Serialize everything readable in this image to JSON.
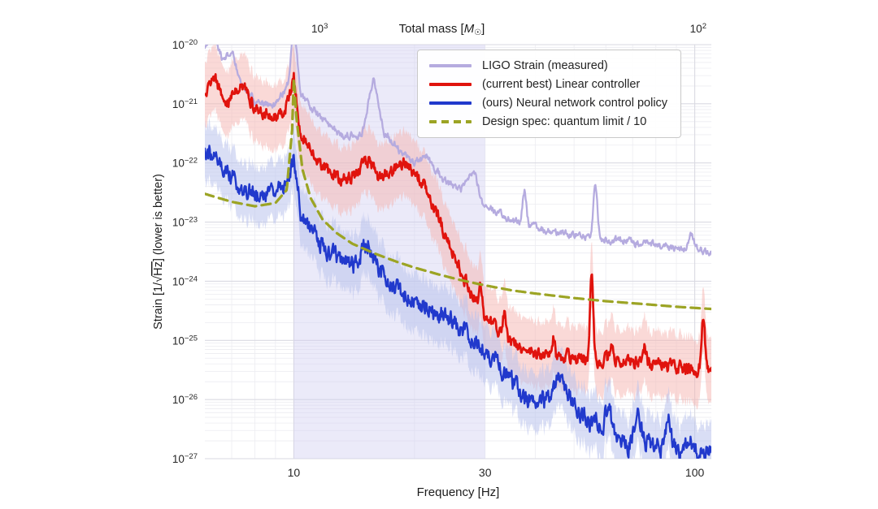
{
  "page": {
    "background": "#ffffff"
  },
  "chart_data": {
    "type": "line",
    "x_scale": "log",
    "y_scale": "log",
    "xlabel": "Frequency [Hz]",
    "ylabel": "Strain [1/√Hz] (lower is better)",
    "ylabel_parts": {
      "prefix": "Strain [1/√",
      "overline": "Hz",
      "suffix": "] (lower is better)"
    },
    "top_axis": {
      "title": "Total mass [M☉]",
      "title_prefix": "Total mass [",
      "symbol": "M",
      "symbol_sub": "☉",
      "title_suffix": "]"
    },
    "x_range_hz": [
      6,
      110
    ],
    "y_range_exponents": [
      -20,
      -27
    ],
    "x_ticks": [
      10,
      30,
      100
    ],
    "y_tick_exponents": [
      -20,
      -21,
      -22,
      -23,
      -24,
      -25,
      -26,
      -27
    ],
    "top_axis_ticks": [
      {
        "label": "10³",
        "exponent": 3,
        "at_frequency_hz": 11.6
      },
      {
        "label": "10²",
        "exponent": 2,
        "at_frequency_hz": 102
      }
    ],
    "grid": true,
    "legend_position": "upper right",
    "shaded_region": {
      "from_hz": 10,
      "to_hz": 30,
      "color": "#cfcdf0",
      "opacity": 0.42
    },
    "series": [
      {
        "name": "LIGO Strain (measured)",
        "slug": "ligo-strain-measured",
        "color": "#b5abdf",
        "width": 2.3,
        "dash": null,
        "noise_dex": 0.05,
        "band_dex": 0,
        "band_color": null,
        "band_opacity": 0,
        "anchors": [
          [
            6,
            9e-21
          ],
          [
            6.3,
            1.4e-20
          ],
          [
            6.7,
            5e-21
          ],
          [
            7,
            9e-21
          ],
          [
            7.3,
            2.5e-21
          ],
          [
            8,
            1.1e-21
          ],
          [
            9,
            9.5e-22
          ],
          [
            9.7,
            2.2e-21
          ],
          [
            10,
            2.5e-20
          ],
          [
            10.4,
            1.5e-21
          ],
          [
            11.5,
            6.5e-22
          ],
          [
            13,
            3e-22
          ],
          [
            14.8,
            2.9e-22
          ],
          [
            15.8,
            2.7e-21
          ],
          [
            16.8,
            3.2e-22
          ],
          [
            18.5,
            1.5e-22
          ],
          [
            20,
            1e-22
          ],
          [
            21.5,
            1.25e-22
          ],
          [
            23.5,
            5.5e-23
          ],
          [
            26,
            3.4e-23
          ],
          [
            28.2,
            7e-23
          ],
          [
            29.5,
            2.1e-23
          ],
          [
            33,
            1.35e-23
          ],
          [
            37,
            9e-24
          ],
          [
            45,
            6.8e-24
          ],
          [
            55,
            5.6e-24
          ],
          [
            70,
            4.6e-24
          ],
          [
            85,
            3.9e-24
          ],
          [
            100,
            3.4e-24
          ],
          [
            110,
            3.2e-24
          ]
        ],
        "spikes": [
          [
            37.6,
            0.58,
            0.005
          ],
          [
            56.5,
            0.86,
            0.005
          ],
          [
            98,
            0.25,
            0.006
          ]
        ]
      },
      {
        "name": "(current best) Linear controller",
        "slug": "linear-controller",
        "color": "#e0130d",
        "width": 2.7,
        "dash": null,
        "noise_dex": 0.09,
        "band_dex": 0.55,
        "band_color": "#f5b4b0",
        "band_opacity": 0.5,
        "anchors": [
          [
            6,
            1.6e-21
          ],
          [
            6.3,
            2.8e-21
          ],
          [
            6.8,
            1.1e-21
          ],
          [
            7.4,
            2.3e-21
          ],
          [
            8,
            8.5e-22
          ],
          [
            8.8,
            5.5e-22
          ],
          [
            9.5,
            8e-22
          ],
          [
            9.8,
            1.4e-21
          ],
          [
            10,
            2.9e-21
          ],
          [
            10.35,
            3.8e-22
          ],
          [
            11,
            1.7e-22
          ],
          [
            12,
            8e-23
          ],
          [
            13,
            5e-23
          ],
          [
            14,
            5.5e-23
          ],
          [
            15.4,
            1.15e-22
          ],
          [
            16.3,
            5.5e-23
          ],
          [
            17.3,
            7.5e-23
          ],
          [
            18.8,
            9.5e-23
          ],
          [
            20,
            7e-23
          ],
          [
            21,
            4.5e-23
          ],
          [
            22.5,
            1.6e-23
          ],
          [
            24,
            5.5e-24
          ],
          [
            26,
            1.6e-24
          ],
          [
            28,
            5.5e-25
          ],
          [
            30,
            2.4e-25
          ],
          [
            33,
            1.2e-25
          ],
          [
            36,
            8e-26
          ],
          [
            40,
            6e-26
          ],
          [
            50,
            5e-26
          ],
          [
            60,
            4.6e-26
          ],
          [
            75,
            4.2e-26
          ],
          [
            90,
            3.6e-26
          ],
          [
            110,
            3e-26
          ]
        ],
        "spikes": [
          [
            29.3,
            0.45,
            0.004
          ],
          [
            33.5,
            0.4,
            0.004
          ],
          [
            44.5,
            0.35,
            0.0035
          ],
          [
            55.3,
            1.36,
            0.004
          ],
          [
            62,
            0.3,
            0.0035
          ],
          [
            75,
            0.28,
            0.0035
          ],
          [
            105,
            0.9,
            0.004
          ]
        ]
      },
      {
        "name": "(ours) Neural network control policy",
        "slug": "neural-network-policy",
        "color": "#2139cc",
        "width": 2.4,
        "dash": null,
        "noise_dex": 0.13,
        "band_dex": 0.48,
        "band_color": "#b9c3ec",
        "band_opacity": 0.55,
        "anchors": [
          [
            6,
            1.7e-22
          ],
          [
            6.6,
            9e-23
          ],
          [
            7.2,
            5e-23
          ],
          [
            8.2,
            2.4e-23
          ],
          [
            9,
            2.9e-23
          ],
          [
            9.7,
            5.5e-23
          ],
          [
            10,
            1.25e-22
          ],
          [
            10.4,
            1.6e-23
          ],
          [
            11,
            7e-24
          ],
          [
            12,
            3.6e-24
          ],
          [
            13.2,
            2.2e-24
          ],
          [
            14.2,
            1.9e-24
          ],
          [
            15.4,
            4.6e-24
          ],
          [
            16.4,
            1.3e-24
          ],
          [
            18,
            7.5e-25
          ],
          [
            20,
            4.8e-25
          ],
          [
            23,
            2.9e-25
          ],
          [
            26,
            1.7e-25
          ],
          [
            30,
            7e-26
          ],
          [
            34,
            2.4e-26
          ],
          [
            38,
            1.1e-26
          ],
          [
            42,
            9e-27
          ],
          [
            46,
            2.3e-26
          ],
          [
            48.5,
            1.4e-26
          ],
          [
            52,
            6e-27
          ],
          [
            56,
            3.5e-27
          ],
          [
            60,
            4.5e-27
          ],
          [
            64,
            2.5e-27
          ],
          [
            68,
            1.6e-27
          ],
          [
            72,
            3.8e-27
          ],
          [
            76,
            1.8e-27
          ],
          [
            82,
            1.4e-27
          ],
          [
            86,
            3.2e-27
          ],
          [
            92,
            1.1e-27
          ],
          [
            97,
            2.2e-27
          ],
          [
            103,
            1.3e-27
          ],
          [
            110,
            1.4e-27
          ]
        ],
        "spikes": [
          [
            61,
            0.35,
            0.005
          ],
          [
            72.5,
            0.3,
            0.004
          ],
          [
            86,
            0.3,
            0.004
          ]
        ]
      },
      {
        "name": "Design spec: quantum limit / 10",
        "slug": "design-spec",
        "color": "#9ca424",
        "width": 3.2,
        "dash": [
          11,
          7
        ],
        "noise_dex": 0,
        "band_dex": 0,
        "band_color": null,
        "band_opacity": 0,
        "anchors": [
          [
            6,
            3e-23
          ],
          [
            7,
            2.2e-23
          ],
          [
            8,
            1.85e-23
          ],
          [
            9,
            2.1e-23
          ],
          [
            9.6,
            3.5e-23
          ],
          [
            9.9,
            3.5e-22
          ],
          [
            10,
            2.7e-21
          ],
          [
            10.15,
            6e-22
          ],
          [
            10.5,
            8e-23
          ],
          [
            11,
            2.6e-23
          ],
          [
            11.8,
            1.1e-23
          ],
          [
            12.8,
            6.5e-24
          ],
          [
            14,
            4.3e-24
          ],
          [
            16,
            2.9e-24
          ],
          [
            18,
            2.15e-24
          ],
          [
            20,
            1.7e-24
          ],
          [
            23,
            1.3e-24
          ],
          [
            26,
            1.05e-24
          ],
          [
            30,
            8.5e-25
          ],
          [
            35,
            7e-25
          ],
          [
            40,
            6.2e-25
          ],
          [
            50,
            5.2e-25
          ],
          [
            60,
            4.6e-25
          ],
          [
            75,
            4.1e-25
          ],
          [
            90,
            3.7e-25
          ],
          [
            110,
            3.4e-25
          ]
        ],
        "spikes": []
      }
    ]
  }
}
